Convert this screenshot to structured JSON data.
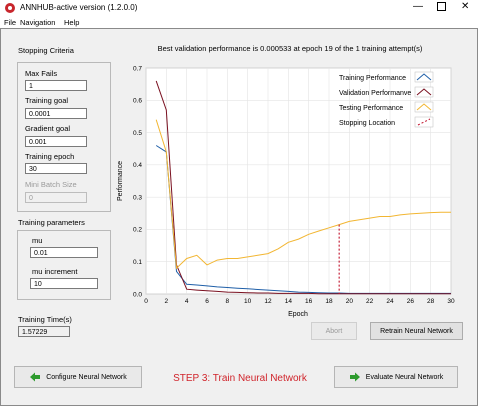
{
  "window": {
    "title": "ANNHUB-active version (1.2.0.0)",
    "minimize_glyph": "—",
    "close_glyph": "✕"
  },
  "menu": [
    "File",
    "Navigation",
    "Help"
  ],
  "stopping": {
    "title": "Stopping Criteria",
    "max_fails_label": "Max Fails",
    "max_fails": "1",
    "training_goal_label": "Training goal",
    "training_goal": "0.0001",
    "gradient_goal_label": "Gradient goal",
    "gradient_goal": "0.001",
    "training_epoch_label": "Training epoch",
    "training_epoch": "30",
    "mini_batch_label": "Mini Batch Size",
    "mini_batch": "0"
  },
  "params": {
    "title": "Training parameters",
    "mu_label": "mu",
    "mu": "0.01",
    "mu_increment_label": "mu increment",
    "mu_increment": "10"
  },
  "time": {
    "label": "Training Time(s)",
    "value": "1.57229"
  },
  "buttons": {
    "abort": "Abort",
    "retrain": "Retrain Neural Network",
    "configure": "Configure Neural Network",
    "evaluate": "Evaluate Neural Network"
  },
  "step_label": "STEP 3: Train Neural Network",
  "colors": {
    "training": "#1f5fa8",
    "validation": "#7a1020",
    "testing": "#f2b632",
    "stopping": "#c0102a",
    "step": "#d0242b"
  },
  "chart_data": {
    "type": "line",
    "title": "Best validation performance is 0.000533 at epoch 19 of the 1 training attempt(s)",
    "xlabel": "Epoch",
    "ylabel": "Performance",
    "xlim": [
      0,
      30
    ],
    "ylim": [
      0,
      0.7
    ],
    "xticks": [
      0,
      2,
      4,
      6,
      8,
      10,
      12,
      14,
      16,
      18,
      20,
      22,
      24,
      26,
      28,
      30
    ],
    "yticks": [
      0.0,
      0.1,
      0.2,
      0.3,
      0.4,
      0.5,
      0.6,
      0.7
    ],
    "grid": true,
    "legend_position": "top-right",
    "stopping_epoch": 19,
    "series": [
      {
        "name": "Training Performance",
        "x": [
          1,
          2,
          3,
          4,
          5,
          6,
          7,
          8,
          9,
          10,
          11,
          12,
          13,
          14,
          15,
          16,
          17,
          18,
          19,
          20,
          21,
          22,
          23,
          24,
          25,
          26,
          27,
          28,
          29,
          30
        ],
        "values": [
          0.46,
          0.44,
          0.07,
          0.03,
          0.028,
          0.025,
          0.022,
          0.02,
          0.018,
          0.016,
          0.014,
          0.012,
          0.01,
          0.008,
          0.006,
          0.005,
          0.004,
          0.003,
          0.003,
          0.002,
          0.002,
          0.002,
          0.002,
          0.002,
          0.002,
          0.002,
          0.002,
          0.002,
          0.002,
          0.002
        ]
      },
      {
        "name": "Validation Performanve",
        "x": [
          1,
          2,
          3,
          4,
          5,
          6,
          7,
          8,
          9,
          10,
          11,
          12,
          13,
          14,
          15,
          16,
          17,
          18,
          19,
          20,
          21,
          22,
          23,
          24,
          25,
          26,
          27,
          28,
          29,
          30
        ],
        "values": [
          0.66,
          0.57,
          0.09,
          0.015,
          0.012,
          0.01,
          0.008,
          0.006,
          0.005,
          0.004,
          0.003,
          0.003,
          0.002,
          0.002,
          0.002,
          0.002,
          0.001,
          0.001,
          0.001,
          0.001,
          0.001,
          0.001,
          0.001,
          0.001,
          0.001,
          0.001,
          0.001,
          0.001,
          0.001,
          0.001
        ]
      },
      {
        "name": "Testing Performance",
        "x": [
          1,
          2,
          3,
          4,
          5,
          6,
          7,
          8,
          9,
          10,
          11,
          12,
          13,
          14,
          15,
          16,
          17,
          18,
          19,
          20,
          21,
          22,
          23,
          24,
          25,
          26,
          27,
          28,
          29,
          30
        ],
        "values": [
          0.54,
          0.44,
          0.08,
          0.11,
          0.12,
          0.09,
          0.105,
          0.11,
          0.11,
          0.115,
          0.12,
          0.125,
          0.14,
          0.16,
          0.17,
          0.185,
          0.195,
          0.205,
          0.215,
          0.225,
          0.23,
          0.235,
          0.24,
          0.24,
          0.245,
          0.248,
          0.25,
          0.252,
          0.253,
          0.253
        ]
      }
    ],
    "legend_extra": "Stopping Location"
  }
}
